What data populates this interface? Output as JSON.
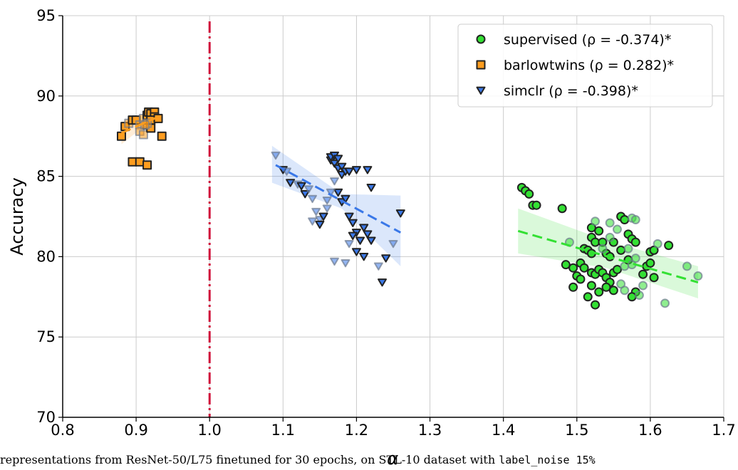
{
  "chart_data": {
    "type": "scatter",
    "xlabel": "α",
    "ylabel": "Accuracy",
    "xlim": [
      0.8,
      1.7
    ],
    "ylim": [
      70,
      95
    ],
    "xticks": [
      "0.8",
      "0.9",
      "1.0",
      "1.1",
      "1.2",
      "1.3",
      "1.4",
      "1.5",
      "1.6",
      "1.7"
    ],
    "yticks": [
      "70",
      "75",
      "80",
      "85",
      "90",
      "95"
    ],
    "grid": true,
    "legend_position": "top-right",
    "vline": {
      "x": 1.0,
      "color": "#d0103a",
      "style": "dash-dot"
    },
    "series": [
      {
        "name": "supervised (ρ = -0.374)*",
        "marker": "circle",
        "color": "#33e033",
        "trend": {
          "x": [
            1.42,
            1.665
          ],
          "y": [
            81.6,
            78.4
          ],
          "band": [
            [
              1.42,
              80.2,
              83.0
            ],
            [
              1.54,
              79.3,
              81.0
            ],
            [
              1.665,
              77.4,
              79.4
            ]
          ]
        },
        "points": [
          [
            1.425,
            84.3,
            1
          ],
          [
            1.43,
            84.1,
            1
          ],
          [
            1.435,
            83.9,
            1
          ],
          [
            1.44,
            83.2,
            1
          ],
          [
            1.445,
            83.2,
            1
          ],
          [
            1.48,
            83.0,
            1
          ],
          [
            1.52,
            81.8,
            1
          ],
          [
            1.525,
            82.2,
            0
          ],
          [
            1.545,
            82.1,
            0
          ],
          [
            1.56,
            82.5,
            1
          ],
          [
            1.565,
            82.3,
            1
          ],
          [
            1.575,
            82.4,
            0
          ],
          [
            1.58,
            82.3,
            0
          ],
          [
            1.57,
            81.4,
            1
          ],
          [
            1.575,
            81.1,
            1
          ],
          [
            1.58,
            80.9,
            1
          ],
          [
            1.53,
            81.6,
            1
          ],
          [
            1.52,
            81.2,
            1
          ],
          [
            1.525,
            80.9,
            1
          ],
          [
            1.535,
            80.9,
            1
          ],
          [
            1.55,
            80.9,
            1
          ],
          [
            1.56,
            80.4,
            1
          ],
          [
            1.54,
            80.2,
            1
          ],
          [
            1.545,
            80.0,
            1
          ],
          [
            1.51,
            80.5,
            1
          ],
          [
            1.515,
            80.4,
            1
          ],
          [
            1.52,
            80.2,
            1
          ],
          [
            1.49,
            80.9,
            0
          ],
          [
            1.485,
            79.5,
            1
          ],
          [
            1.495,
            79.3,
            1
          ],
          [
            1.5,
            78.8,
            1
          ],
          [
            1.505,
            79.6,
            1
          ],
          [
            1.51,
            79.3,
            1
          ],
          [
            1.52,
            79.0,
            1
          ],
          [
            1.525,
            78.9,
            1
          ],
          [
            1.53,
            79.2,
            1
          ],
          [
            1.535,
            79.0,
            1
          ],
          [
            1.54,
            78.7,
            1
          ],
          [
            1.545,
            78.4,
            1
          ],
          [
            1.55,
            79.0,
            1
          ],
          [
            1.555,
            79.2,
            1
          ],
          [
            1.565,
            79.4,
            0
          ],
          [
            1.57,
            79.8,
            1
          ],
          [
            1.575,
            79.5,
            0
          ],
          [
            1.58,
            79.9,
            0
          ],
          [
            1.59,
            78.9,
            1
          ],
          [
            1.595,
            79.4,
            1
          ],
          [
            1.6,
            80.3,
            1
          ],
          [
            1.605,
            80.4,
            1
          ],
          [
            1.61,
            80.8,
            0
          ],
          [
            1.625,
            80.7,
            1
          ],
          [
            1.6,
            79.6,
            1
          ],
          [
            1.605,
            78.7,
            1
          ],
          [
            1.59,
            78.2,
            0
          ],
          [
            1.58,
            77.8,
            1
          ],
          [
            1.575,
            77.5,
            1
          ],
          [
            1.56,
            78.3,
            0
          ],
          [
            1.55,
            77.9,
            1
          ],
          [
            1.54,
            78.1,
            1
          ],
          [
            1.53,
            77.8,
            1
          ],
          [
            1.52,
            78.2,
            1
          ],
          [
            1.515,
            77.5,
            1
          ],
          [
            1.505,
            78.6,
            1
          ],
          [
            1.495,
            78.1,
            1
          ],
          [
            1.525,
            77.0,
            1
          ],
          [
            1.565,
            77.9,
            0
          ],
          [
            1.585,
            77.6,
            0
          ],
          [
            1.62,
            77.1,
            0
          ],
          [
            1.65,
            79.4,
            0
          ],
          [
            1.665,
            78.8,
            0
          ],
          [
            1.535,
            80.5,
            0
          ],
          [
            1.545,
            81.2,
            0
          ],
          [
            1.555,
            81.7,
            0
          ],
          [
            1.57,
            80.5,
            0
          ]
        ]
      },
      {
        "name": "barlowtwins (ρ = 0.282)*",
        "marker": "square",
        "color": "#ff9d1f",
        "trend": {
          "x": [
            0.88,
            0.93
          ],
          "y": [
            87.7,
            88.7
          ],
          "band": [
            [
              0.88,
              87.0,
              88.4
            ],
            [
              0.905,
              87.9,
              88.5
            ],
            [
              0.93,
              88.3,
              89.2
            ]
          ]
        },
        "points": [
          [
            0.88,
            87.5,
            1
          ],
          [
            0.885,
            88.1,
            1
          ],
          [
            0.89,
            88.3,
            0
          ],
          [
            0.895,
            88.5,
            1
          ],
          [
            0.9,
            88.5,
            1
          ],
          [
            0.905,
            88.2,
            0
          ],
          [
            0.905,
            87.8,
            0
          ],
          [
            0.91,
            88.6,
            0
          ],
          [
            0.91,
            87.6,
            0
          ],
          [
            0.915,
            88.2,
            1
          ],
          [
            0.915,
            88.5,
            1
          ],
          [
            0.915,
            88.8,
            1
          ],
          [
            0.917,
            89.0,
            1
          ],
          [
            0.92,
            88.9,
            1
          ],
          [
            0.92,
            88.0,
            1
          ],
          [
            0.925,
            89.0,
            1
          ],
          [
            0.925,
            88.7,
            1
          ],
          [
            0.92,
            88.5,
            1
          ],
          [
            0.93,
            88.6,
            1
          ],
          [
            0.935,
            87.5,
            1
          ],
          [
            0.895,
            85.9,
            1
          ],
          [
            0.905,
            85.9,
            1
          ],
          [
            0.915,
            85.7,
            1
          ],
          [
            0.915,
            88.3,
            0
          ],
          [
            0.912,
            88.2,
            0
          ]
        ]
      },
      {
        "name": "simclr (ρ = -0.398)*",
        "marker": "triangle",
        "color": "#3a78e8",
        "trend": {
          "x": [
            1.09,
            1.26
          ],
          "y": [
            85.7,
            81.5
          ],
          "band": [
            [
              1.085,
              84.6,
              86.9
            ],
            [
              1.18,
              83.0,
              83.9
            ],
            [
              1.26,
              79.4,
              83.8
            ]
          ]
        },
        "points": [
          [
            1.09,
            86.3,
            0
          ],
          [
            1.1,
            85.4,
            1
          ],
          [
            1.105,
            85.3,
            0
          ],
          [
            1.11,
            84.6,
            1
          ],
          [
            1.12,
            84.5,
            0
          ],
          [
            1.125,
            84.4,
            1
          ],
          [
            1.13,
            83.9,
            1
          ],
          [
            1.135,
            84.2,
            0
          ],
          [
            1.14,
            83.6,
            0
          ],
          [
            1.145,
            82.8,
            0
          ],
          [
            1.15,
            82.3,
            0
          ],
          [
            1.15,
            82.0,
            1
          ],
          [
            1.155,
            82.5,
            1
          ],
          [
            1.16,
            83.0,
            0
          ],
          [
            1.165,
            86.0,
            1
          ],
          [
            1.165,
            86.2,
            1
          ],
          [
            1.17,
            86.3,
            1
          ],
          [
            1.17,
            85.8,
            1
          ],
          [
            1.175,
            86.1,
            1
          ],
          [
            1.175,
            85.5,
            1
          ],
          [
            1.18,
            85.6,
            1
          ],
          [
            1.18,
            85.1,
            1
          ],
          [
            1.185,
            85.3,
            1
          ],
          [
            1.19,
            85.3,
            1
          ],
          [
            1.2,
            85.4,
            1
          ],
          [
            1.215,
            85.4,
            1
          ],
          [
            1.22,
            84.3,
            1
          ],
          [
            1.17,
            84.7,
            0
          ],
          [
            1.175,
            84.0,
            1
          ],
          [
            1.18,
            83.4,
            1
          ],
          [
            1.185,
            83.6,
            1
          ],
          [
            1.19,
            82.5,
            1
          ],
          [
            1.195,
            82.1,
            1
          ],
          [
            1.2,
            81.5,
            1
          ],
          [
            1.205,
            81.0,
            1
          ],
          [
            1.21,
            81.8,
            1
          ],
          [
            1.215,
            81.4,
            1
          ],
          [
            1.22,
            81.0,
            1
          ],
          [
            1.2,
            80.3,
            1
          ],
          [
            1.21,
            80.0,
            1
          ],
          [
            1.23,
            79.4,
            0
          ],
          [
            1.235,
            78.4,
            1
          ],
          [
            1.24,
            79.9,
            1
          ],
          [
            1.25,
            80.8,
            0
          ],
          [
            1.26,
            82.7,
            1
          ],
          [
            1.17,
            79.7,
            0
          ],
          [
            1.185,
            79.6,
            0
          ],
          [
            1.19,
            80.8,
            0
          ],
          [
            1.195,
            81.3,
            1
          ],
          [
            1.16,
            83.5,
            0
          ],
          [
            1.165,
            84.0,
            0
          ],
          [
            1.14,
            82.2,
            0
          ]
        ]
      }
    ]
  },
  "caption": {
    "text": "representations from ResNet-50/L75 finetuned for 30 epochs, on STL-10 dataset with",
    "code": "label_noise 15%"
  }
}
